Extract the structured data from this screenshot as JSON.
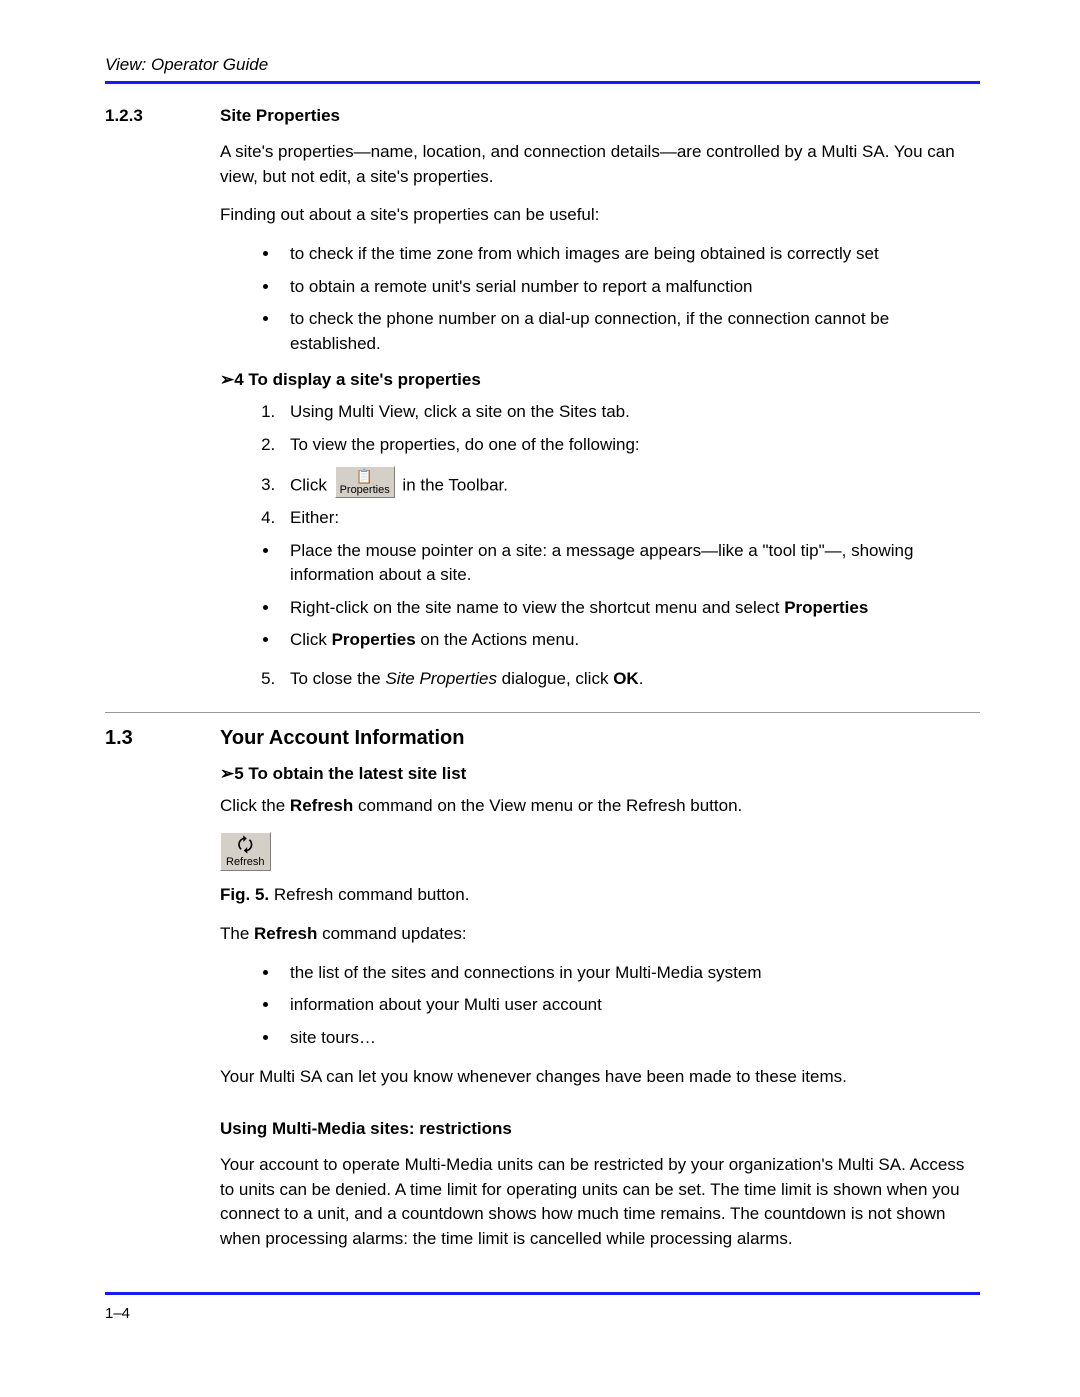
{
  "header": {
    "title": "View: Operator Guide"
  },
  "sec123": {
    "num": "1.2.3",
    "title": "Site Properties",
    "p1a": "A site's properties—name, location, and connection details—are controlled by a Multi SA. You can view, but not edit, a site's properties.",
    "p2": "Finding out about a site's properties can be useful:",
    "bullets": [
      "to check if the time zone from which images are being obtained is correctly set",
      "to obtain a remote unit's serial number to report a malfunction",
      "to check the phone number on a dial-up connection, if the connection cannot be established."
    ],
    "proc4": {
      "arrow": "➢4",
      "title": "  To display a site's properties",
      "s1": "Using Multi View, click a site on the Sites tab.",
      "s2": "To view the properties, do one of the following:",
      "s3a": "Click ",
      "s3b": " in the Toolbar.",
      "s4": "Either:",
      "b1": "Place the mouse pointer on a site: a message appears—like a \"tool tip\"—, showing information about a site.",
      "b2a": "Right-click on the site name to view the shortcut menu and select ",
      "b2b": "Properties",
      "b3a": "Click ",
      "b3b": "Properties",
      "b3c": " on the Actions menu.",
      "s5a": "To close the ",
      "s5b": "Site Properties",
      "s5c": " dialogue, click ",
      "s5d": "OK",
      "s5e": "."
    },
    "propBtn": {
      "label": "Properties"
    }
  },
  "sec13": {
    "num": "1.3",
    "title": "Your Account Information",
    "proc5": {
      "arrow": "➢5",
      "title": "  To obtain the latest site list"
    },
    "p1a": "Click the ",
    "p1b": "Refresh",
    "p1c": " command on the View menu or the Refresh button.",
    "refreshBtn": {
      "label": "Refresh"
    },
    "figLabel": "Fig. 5. ",
    "figCaption": "Refresh command button.",
    "p2a": "The ",
    "p2b": "Refresh",
    "p2c": " command updates:",
    "bullets2": [
      "the list of the sites and connections in your Multi-Media system",
      "information about your Multi user account",
      "site tours…"
    ],
    "p3": "Your Multi SA can let you know whenever changes have been made to these items.",
    "sub": "Using Multi-Media sites: restrictions",
    "p4": "Your account to operate Multi-Media units can be restricted by your organization's Multi SA. Access to units can be denied. A time limit for operating units can be set. The time limit is shown when you connect to a unit, and a countdown shows how much time remains. The countdown is not shown when processing alarms: the time limit is cancelled while processing alarms."
  },
  "footer": {
    "pageNum": "1–4"
  }
}
